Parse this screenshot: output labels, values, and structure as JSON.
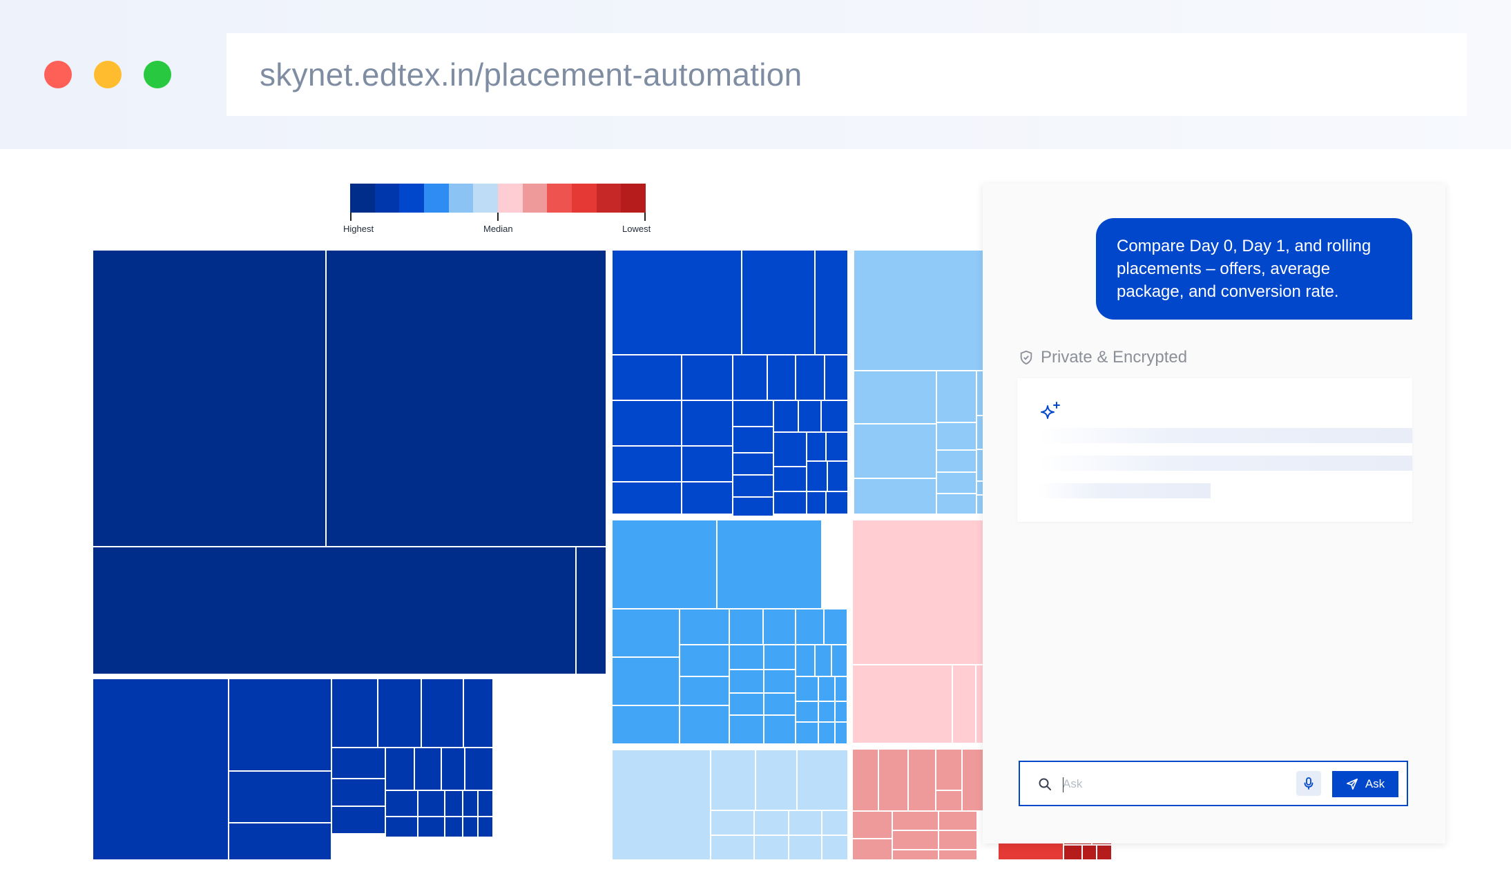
{
  "browser": {
    "url": "skynet.edtex.in/placement-automation",
    "window_controls": [
      "close",
      "minimize",
      "maximize"
    ]
  },
  "treemap": {
    "legend": {
      "colors": [
        "#002d8a",
        "#0037ad",
        "#0047cc",
        "#2f8cf2",
        "#8cc3f5",
        "#bfdcf7",
        "#fdcdd3",
        "#ef9a9a",
        "#ef5350",
        "#e53935",
        "#c62828",
        "#b71c1c"
      ],
      "labels": {
        "highest": "Highest",
        "median": "Median",
        "lowest": "Lowest"
      }
    },
    "palette": {
      "darkest_blue": "#002d8a",
      "dark_blue": "#0037ad",
      "blue": "#0047cc",
      "mid_blue": "#42a5f5",
      "light_blue": "#90caf9",
      "pale_blue": "#bbdefb",
      "pale_red": "#ffcdd2",
      "light_red": "#ef9a9a",
      "red": "#ef5350",
      "deep_red": "#e53935",
      "dark_red": "#c62828",
      "darkest_red": "#b71c1c"
    }
  },
  "chat": {
    "user_message": "Compare Day 0, Day 1, and rolling placements – offers, average package, and conversion rate.",
    "privacy_label": "Private & Encrypted",
    "response_state": "loading",
    "ask_placeholder": "Ask",
    "ask_button_label": "Ask",
    "accent_color": "#0047cc"
  }
}
